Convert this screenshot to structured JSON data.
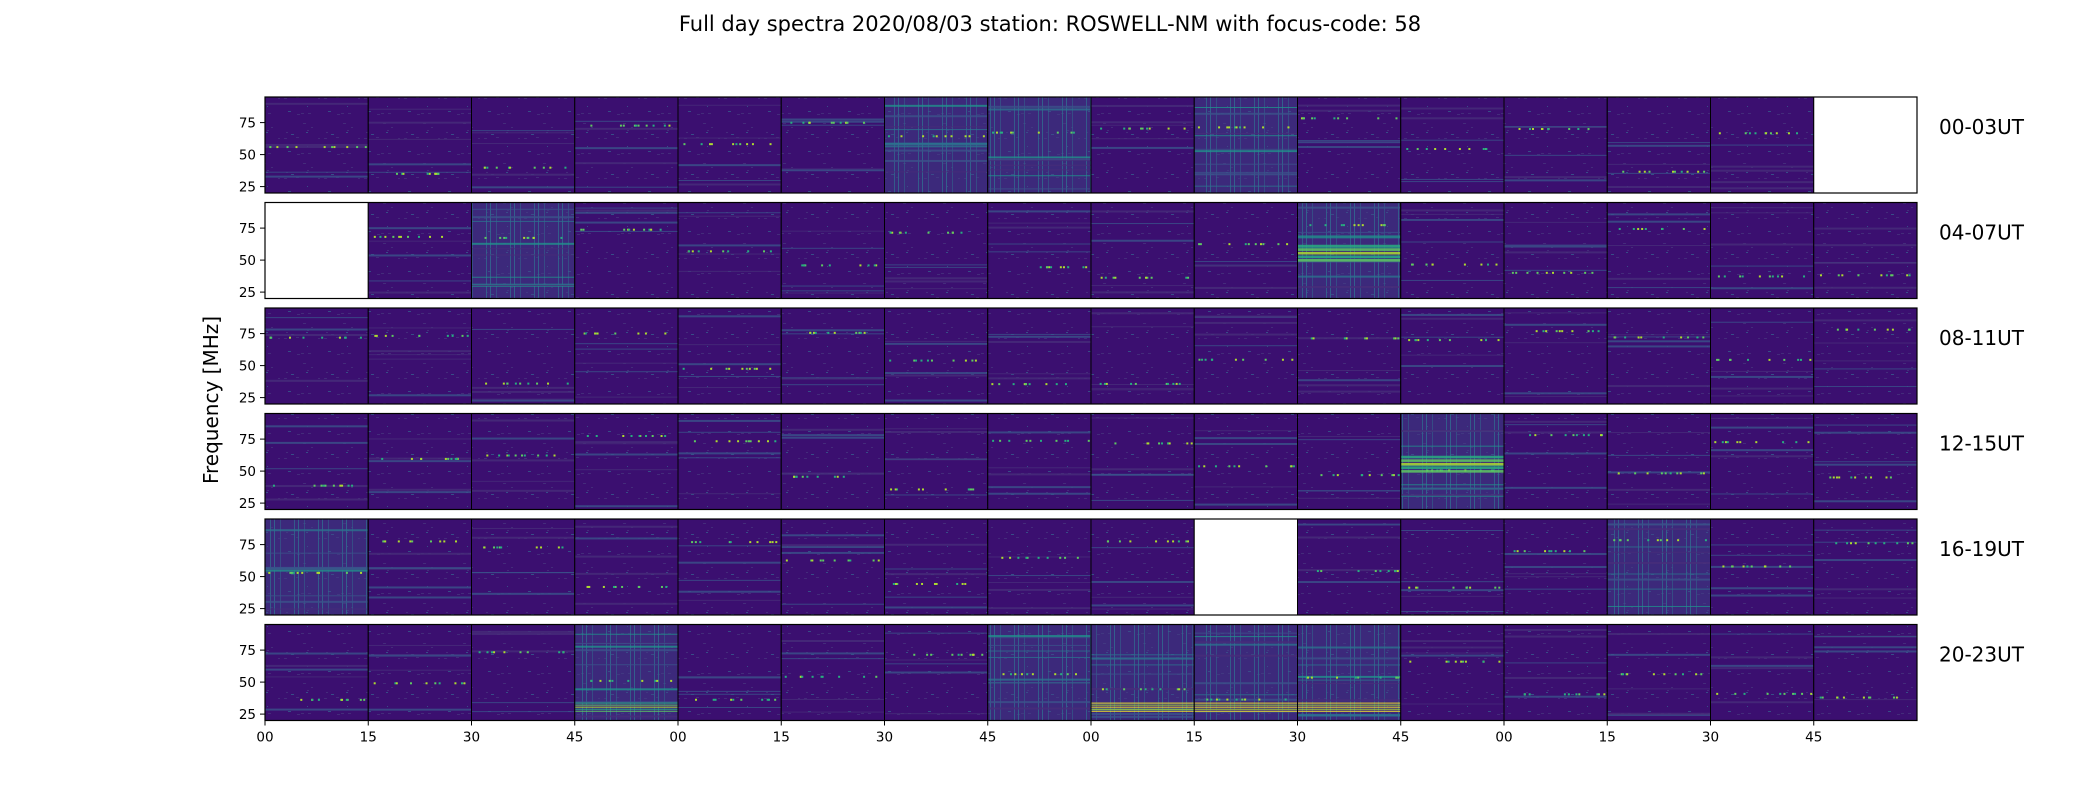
{
  "chart_data": {
    "type": "heatmap",
    "title": "Full day spectra 2020/08/03 station: ROSWELL-NM with focus-code: 58",
    "ylabel": "Frequency [MHz]",
    "xlabel": "",
    "yticks": [
      "25",
      "50",
      "75"
    ],
    "ytick_values": [
      25,
      50,
      75
    ],
    "ylim": [
      20,
      95
    ],
    "xticks": [
      "00",
      "15",
      "30",
      "45",
      "00",
      "15",
      "30",
      "45",
      "00",
      "15",
      "30",
      "45",
      "00",
      "15",
      "30",
      "45"
    ],
    "colormap": "viridis",
    "colors": {
      "low": "#440154",
      "base": "#3b0f70",
      "mid": "#31688e",
      "high": "#35b779",
      "peak": "#fde725",
      "frame": "#000000"
    },
    "rows": [
      {
        "label": "00-03UT",
        "blocks_per_row": 16,
        "empty_blocks": [
          15
        ],
        "hot_blocks": [
          6,
          7,
          9
        ],
        "strong_bands": []
      },
      {
        "label": "04-07UT",
        "blocks_per_row": 16,
        "empty_blocks": [
          0
        ],
        "hot_blocks": [
          2,
          10
        ],
        "strong_bands": [
          10
        ]
      },
      {
        "label": "08-11UT",
        "blocks_per_row": 16,
        "empty_blocks": [],
        "hot_blocks": [],
        "strong_bands": []
      },
      {
        "label": "12-15UT",
        "blocks_per_row": 16,
        "empty_blocks": [],
        "hot_blocks": [
          11
        ],
        "strong_bands": [
          11
        ]
      },
      {
        "label": "16-19UT",
        "blocks_per_row": 16,
        "empty_blocks": [
          9
        ],
        "hot_blocks": [
          0,
          13
        ],
        "strong_bands": []
      },
      {
        "label": "20-23UT",
        "blocks_per_row": 16,
        "empty_blocks": [],
        "hot_blocks": [
          3,
          7,
          8,
          9,
          10
        ],
        "strong_bands": [
          3,
          8,
          9,
          10
        ]
      }
    ]
  }
}
